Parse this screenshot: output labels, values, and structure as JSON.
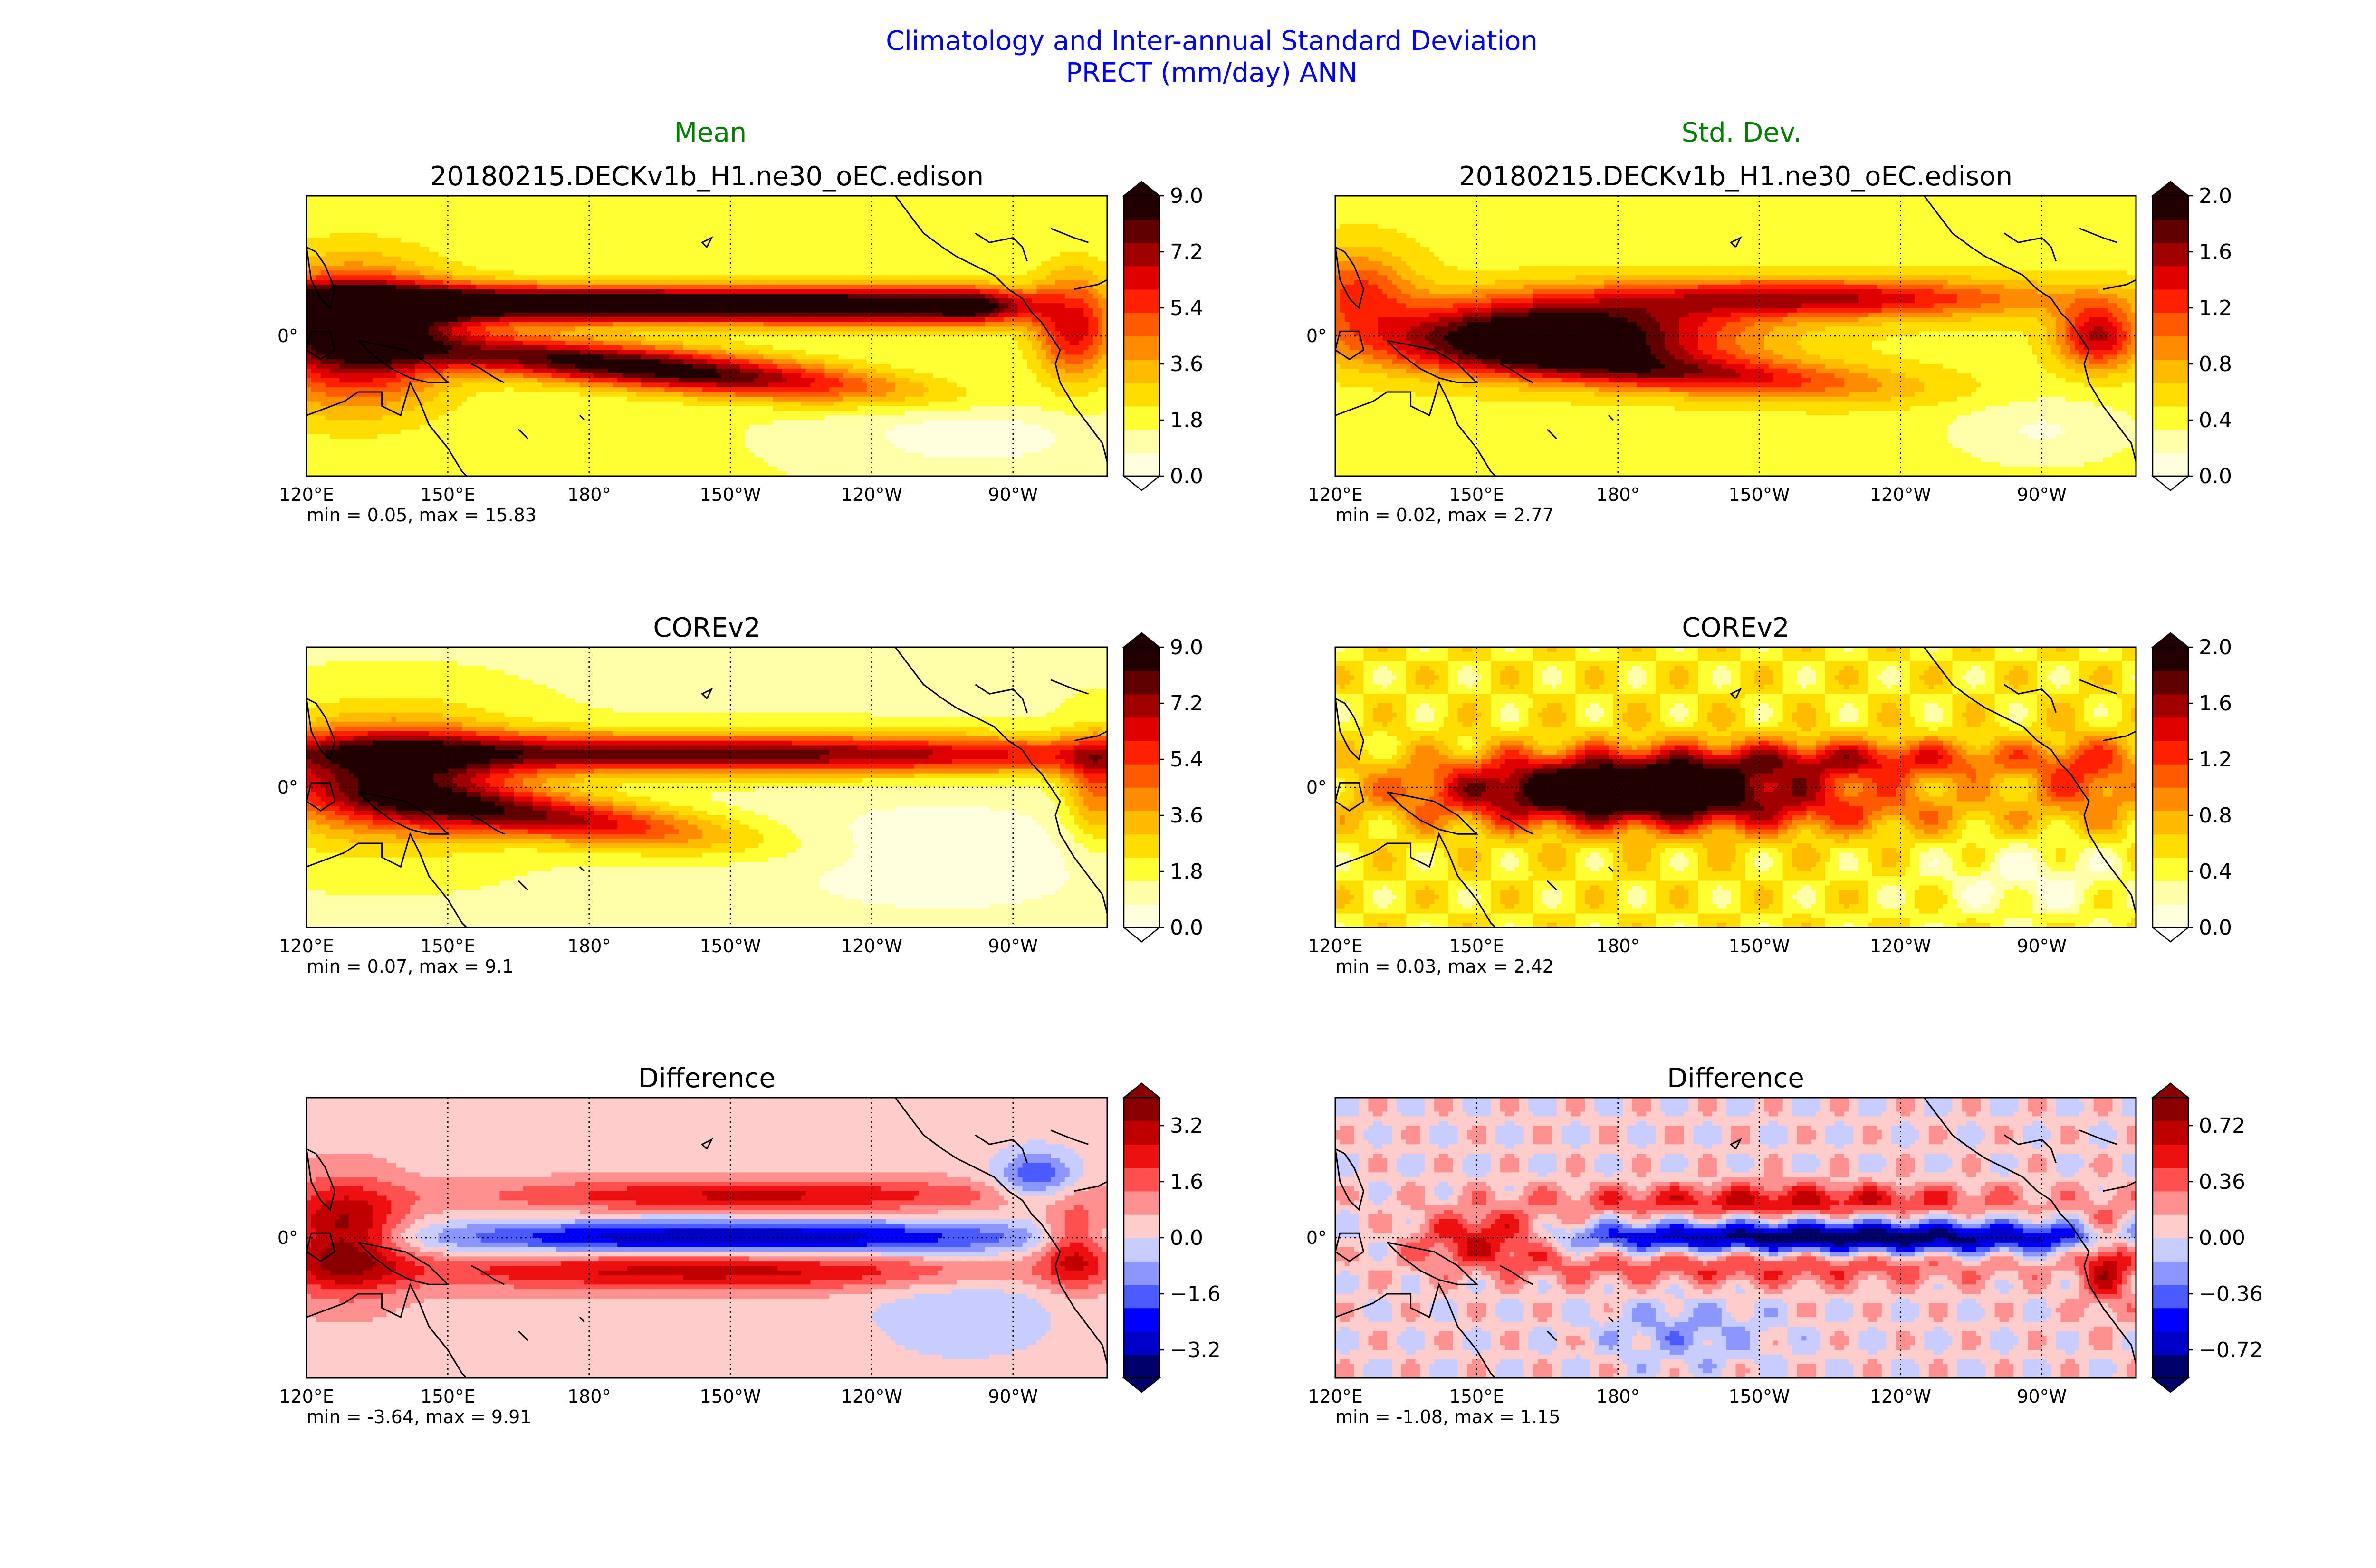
{
  "header": {
    "title_line1": "Climatology and Inter-annual Standard Deviation",
    "title_line2": "PRECT (mm/day) ANN",
    "title_color": "#0000ff",
    "col_titles": [
      "Mean",
      "Std. Dev."
    ],
    "col_title_color": "#008000"
  },
  "axis": {
    "x_ticks": [
      "120°E",
      "150°E",
      "180°",
      "150°W",
      "120°W",
      "90°W"
    ],
    "y_ticks": [
      "0°"
    ]
  },
  "palettes": {
    "sequential": [
      "#ffffdd",
      "#ffffaa",
      "#ffff33",
      "#ffdd00",
      "#ffbb00",
      "#ff8c00",
      "#ff5a00",
      "#ff2000",
      "#e00000",
      "#a00000",
      "#600000",
      "#200000"
    ],
    "diverging": [
      "#00006a",
      "#0000c8",
      "#0000ff",
      "#4a5cff",
      "#8c96ff",
      "#c8ccff",
      "#ffcccc",
      "#ff9090",
      "#ff5050",
      "#ee1010",
      "#c00000",
      "#8a0000"
    ]
  },
  "chart_data": [
    {
      "type": "heatmap",
      "title": "20180215.DECKv1b_H1.ne30_oEC.edison",
      "stats": "min = 0.05, max = 15.83",
      "colorbar_ticks": [
        "9.0",
        "7.2",
        "5.4",
        "3.6",
        "1.8",
        "0.0"
      ],
      "value_range": [
        0.0,
        9.0
      ],
      "palette": "sequential",
      "pattern": "model_mean"
    },
    {
      "type": "heatmap",
      "title": "20180215.DECKv1b_H1.ne30_oEC.edison",
      "stats": "min = 0.02, max = 2.77",
      "colorbar_ticks": [
        "2.0",
        "1.6",
        "1.2",
        "0.8",
        "0.4",
        "0.0"
      ],
      "value_range": [
        0.0,
        2.0
      ],
      "palette": "sequential",
      "pattern": "model_std"
    },
    {
      "type": "heatmap",
      "title": "COREv2",
      "stats": "min = 0.07, max = 9.1",
      "colorbar_ticks": [
        "9.0",
        "7.2",
        "5.4",
        "3.6",
        "1.8",
        "0.0"
      ],
      "value_range": [
        0.0,
        9.0
      ],
      "palette": "sequential",
      "pattern": "obs_mean"
    },
    {
      "type": "heatmap",
      "title": "COREv2",
      "stats": "min = 0.03, max = 2.42",
      "colorbar_ticks": [
        "2.0",
        "1.6",
        "1.2",
        "0.8",
        "0.4",
        "0.0"
      ],
      "value_range": [
        0.0,
        2.0
      ],
      "palette": "sequential",
      "pattern": "obs_std"
    },
    {
      "type": "heatmap",
      "title": "Difference",
      "stats": "min = -3.64, max = 9.91",
      "colorbar_ticks": [
        "3.2",
        "1.6",
        "0.0",
        "−1.6",
        "−3.2"
      ],
      "value_range": [
        -4.0,
        4.0
      ],
      "palette": "diverging",
      "pattern": "diff_mean"
    },
    {
      "type": "heatmap",
      "title": "Difference",
      "stats": "min = -1.08, max = 1.15",
      "colorbar_ticks": [
        "0.72",
        "0.36",
        "0.00",
        "−0.36",
        "−0.72"
      ],
      "value_range": [
        -0.9,
        0.9
      ],
      "palette": "diverging",
      "pattern": "diff_std"
    }
  ]
}
